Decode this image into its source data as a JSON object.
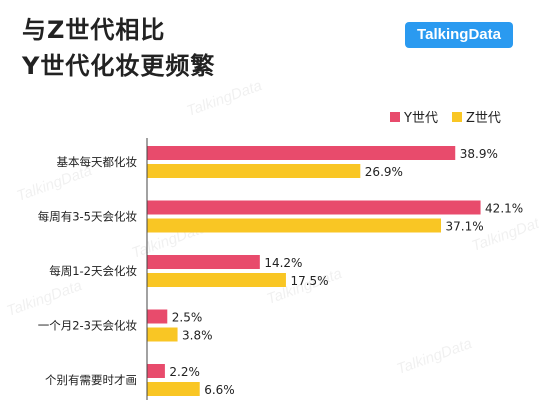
{
  "title": [
    "与Z世代相比",
    "Y世代化妆更频繁"
  ],
  "brand": {
    "name": "TalkingData",
    "color": "#2a9af0"
  },
  "watermark": "TalkingData",
  "chart_data": {
    "type": "bar",
    "orientation": "horizontal",
    "categories": [
      "基本每天都化妆",
      "每周有3-5天会化妆",
      "每周1-2天会化妆",
      "一个月2-3天会化妆",
      "个别有需要时才画"
    ],
    "series": [
      {
        "name": "Y世代",
        "color": "#e84b6c",
        "values": [
          38.9,
          42.1,
          14.2,
          2.5,
          2.2
        ],
        "labels": [
          "38.9%",
          "42.1%",
          "14.2%",
          "2.5%",
          "2.2%"
        ]
      },
      {
        "name": "Z世代",
        "color": "#f9c624",
        "values": [
          26.9,
          37.1,
          17.5,
          3.8,
          6.6
        ],
        "labels": [
          "26.9%",
          "37.1%",
          "17.5%",
          "3.8%",
          "6.6%"
        ]
      }
    ],
    "xlim": [
      0,
      45
    ],
    "legend": "top-right",
    "grid": false
  }
}
